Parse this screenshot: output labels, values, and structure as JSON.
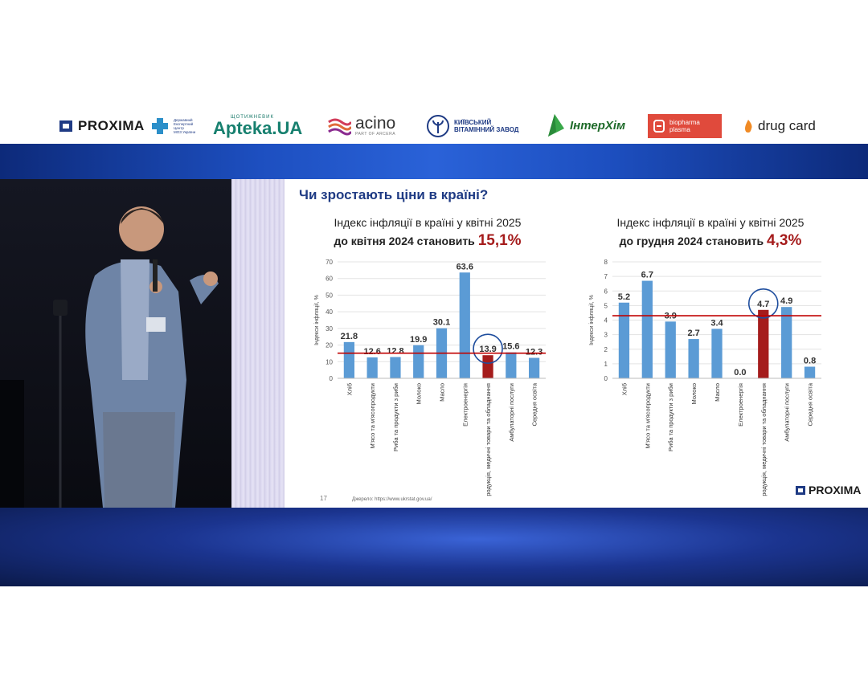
{
  "sponsors": {
    "proxima": "PROXIMA",
    "center_lines": [
      "Державний",
      "Експертний",
      "Центр",
      "МОЗ України"
    ],
    "apteka_small": "ЩОТИЖНЕВИК",
    "apteka": "Apteka.UA",
    "acino": "acino",
    "acino_sub": "PART OF ARCERA",
    "kvz_line1": "КИЇВСЬКИЙ",
    "kvz_line2": "ВІТАМІННИЙ ЗАВОД",
    "interchem": "ІнтерХім",
    "biopharma_line1": "biopharma",
    "biopharma_line2": "plasma",
    "drugcard": "drug card"
  },
  "slide": {
    "title": "Чи зростають ціни в країні?",
    "left_sub1": "Індекс інфляції в країні у квітні 2025",
    "left_sub2": "до квітня 2024 становить",
    "left_pct": "15,1%",
    "right_sub1": "Індекс інфляції в країні у квітні 2025",
    "right_sub2": "до грудня 2024 становить",
    "right_pct": "4,3%",
    "page": "17",
    "source": "Джерело: https://www.ukrstat.gov.ua/",
    "logo": "PROXIMA"
  },
  "colors": {
    "bar": "#5b9bd5",
    "highlight_bar": "#a51c1c",
    "reference_line": "#c00000",
    "circle": "#1f4e9e"
  },
  "chart_data": [
    {
      "type": "bar",
      "title": "Індекс інфляції в країні у квітні 2025 до квітня 2024 становить 15,1%",
      "ylabel": "Індекси інфляції, %",
      "ylim": [
        0,
        70
      ],
      "yticks": [
        0,
        10,
        20,
        30,
        40,
        50,
        60,
        70
      ],
      "categories": [
        "Хліб",
        "М'ясо та м'ясопродукти",
        "Риба та продукти з риби",
        "Молоко",
        "Масло",
        "Електроенергія",
        "Фармацевтична продукція, медичні товари та обладнання",
        "Амбулаторні послуги",
        "Середня освіта"
      ],
      "values": [
        21.8,
        12.6,
        12.8,
        19.9,
        30.1,
        63.6,
        13.9,
        15.6,
        12.3
      ],
      "labels": [
        "21.8",
        "12.6",
        "12.8",
        "19.9",
        "30.1",
        "63.6",
        "13.9",
        "15.6",
        "12.3"
      ],
      "highlight_index": 6,
      "reference_line": 15.1,
      "grid": true
    },
    {
      "type": "bar",
      "title": "Індекс інфляції в країні у квітні 2025 до грудня 2024 становить 4,3%",
      "ylabel": "Індекси інфляції, %",
      "ylim": [
        0,
        8
      ],
      "yticks": [
        0,
        1,
        2,
        3,
        4,
        5,
        6,
        7,
        8
      ],
      "categories": [
        "Хліб",
        "М'ясо та м'ясопродукти",
        "Риба та продукти з риби",
        "Молоко",
        "Масло",
        "Електроенергія",
        "Фармацевтична продукція, медичні товари та обладнання",
        "Амбулаторні послуги",
        "Середня освіта"
      ],
      "values": [
        5.2,
        6.7,
        3.9,
        2.7,
        3.4,
        0.0,
        4.7,
        4.9,
        0.8
      ],
      "labels": [
        "5.2",
        "6.7",
        "3.9",
        "2.7",
        "3.4",
        "0.0",
        "4.7",
        "4.9",
        "0.8"
      ],
      "highlight_index": 6,
      "reference_line": 4.3,
      "grid": true
    }
  ]
}
